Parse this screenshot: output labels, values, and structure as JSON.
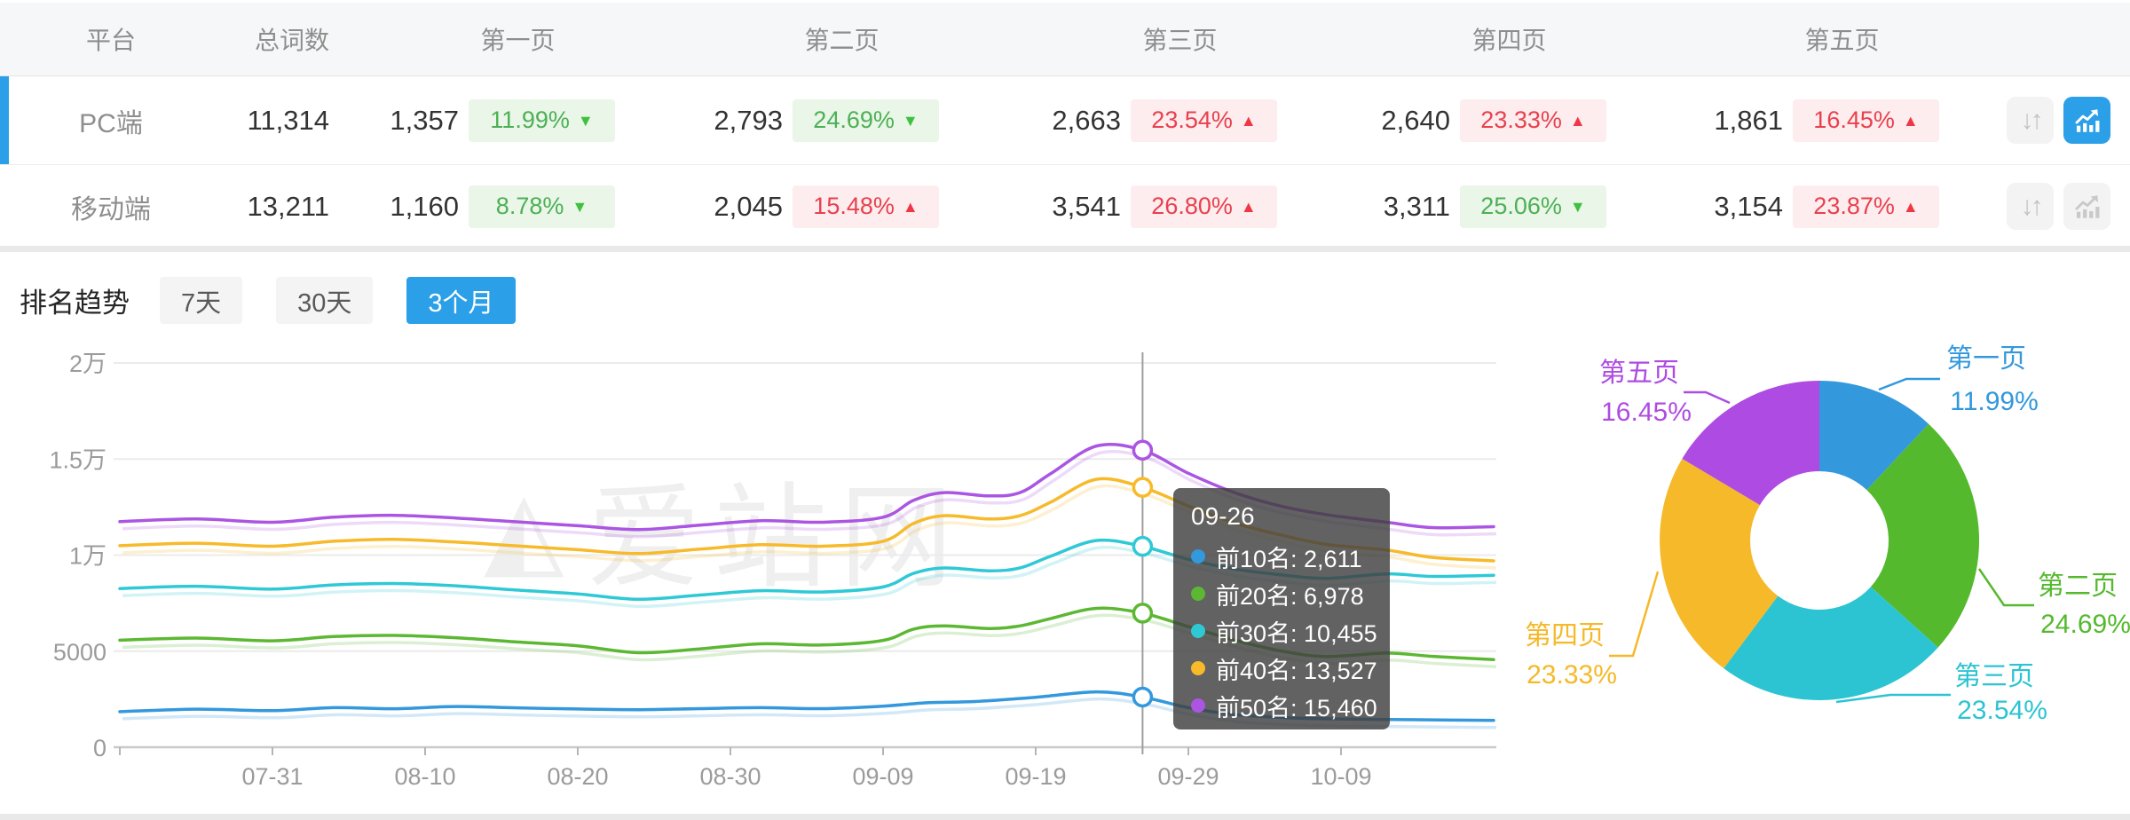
{
  "table": {
    "header": {
      "platform": "平台",
      "total": "总词数",
      "pages": [
        "第一页",
        "第二页",
        "第三页",
        "第四页",
        "第五页"
      ]
    },
    "rows": [
      {
        "platform": "PC端",
        "total": "11,314",
        "selected": true,
        "trend_button_active": true,
        "pages": [
          {
            "count": "1,357",
            "pct": "11.99%",
            "direction": "down",
            "tone": "green"
          },
          {
            "count": "2,793",
            "pct": "24.69%",
            "direction": "down",
            "tone": "green"
          },
          {
            "count": "2,663",
            "pct": "23.54%",
            "direction": "up",
            "tone": "red"
          },
          {
            "count": "2,640",
            "pct": "23.33%",
            "direction": "up",
            "tone": "red"
          },
          {
            "count": "1,861",
            "pct": "16.45%",
            "direction": "up",
            "tone": "red"
          }
        ]
      },
      {
        "platform": "移动端",
        "total": "13,211",
        "selected": false,
        "trend_button_active": false,
        "pages": [
          {
            "count": "1,160",
            "pct": "8.78%",
            "direction": "down",
            "tone": "green"
          },
          {
            "count": "2,045",
            "pct": "15.48%",
            "direction": "up",
            "tone": "red"
          },
          {
            "count": "3,541",
            "pct": "26.80%",
            "direction": "up",
            "tone": "red"
          },
          {
            "count": "3,311",
            "pct": "25.06%",
            "direction": "down",
            "tone": "green"
          },
          {
            "count": "3,154",
            "pct": "23.87%",
            "direction": "up",
            "tone": "red"
          }
        ]
      }
    ]
  },
  "trend": {
    "title": "排名趋势",
    "tabs": [
      {
        "label": "7天",
        "active": false
      },
      {
        "label": "30天",
        "active": false
      },
      {
        "label": "3个月",
        "active": true
      }
    ]
  },
  "watermark": {
    "text": "爱站网"
  },
  "tooltip": {
    "date": "09-26",
    "rows": [
      {
        "label": "前10名",
        "value": "2,611",
        "color": "#3398dc"
      },
      {
        "label": "前20名",
        "value": "6,978",
        "color": "#5cb832"
      },
      {
        "label": "前30名",
        "value": "10,455",
        "color": "#2fc9d6"
      },
      {
        "label": "前40名",
        "value": "13,527",
        "color": "#f7ba2a"
      },
      {
        "label": "前50名",
        "value": "15,460",
        "color": "#ab55e3"
      }
    ]
  },
  "colors": {
    "accent_blue": "#2b9fe8",
    "badge_green_text": "#4db056",
    "badge_red_text": "#e8414d",
    "axis_text": "#9b9b9b",
    "grid_line": "#ebebeb"
  },
  "chart_data": [
    {
      "type": "line",
      "title": "排名趋势 3个月",
      "x_axis": {
        "start_date": "07-21",
        "end_date": "10-19",
        "tick_labels": [
          "07-31",
          "08-10",
          "08-20",
          "08-30",
          "09-09",
          "09-19",
          "09-29",
          "10-09"
        ],
        "tick_days": [
          10,
          20,
          30,
          40,
          50,
          60,
          70,
          80
        ],
        "domain_days": [
          0,
          90
        ]
      },
      "y_axis": {
        "tick_labels": [
          "0",
          "5000",
          "1万",
          "1.5万",
          "2万"
        ],
        "tick_values": [
          0,
          5000,
          10000,
          15000,
          20000
        ],
        "ylim": [
          0,
          20000
        ]
      },
      "highlight": {
        "date": "09-26",
        "day": 67,
        "values": [
          2611,
          6978,
          10455,
          13527,
          15460
        ]
      },
      "legend_position": "tooltip-only",
      "grid": true,
      "series": [
        {
          "name": "前10名",
          "color": "#3398dc",
          "points": [
            [
              0,
              1850
            ],
            [
              5,
              1980
            ],
            [
              10,
              1905
            ],
            [
              14,
              2060
            ],
            [
              18,
              2005
            ],
            [
              22,
              2120
            ],
            [
              26,
              2050
            ],
            [
              30,
              1990
            ],
            [
              34,
              1955
            ],
            [
              38,
              2010
            ],
            [
              42,
              2060
            ],
            [
              46,
              2010
            ],
            [
              50,
              2140
            ],
            [
              53,
              2320
            ],
            [
              56,
              2380
            ],
            [
              60,
              2600
            ],
            [
              64,
              2880
            ],
            [
              67,
              2611
            ],
            [
              70,
              2060
            ],
            [
              73,
              1700
            ],
            [
              77,
              1520
            ],
            [
              81,
              1460
            ],
            [
              85,
              1430
            ],
            [
              90,
              1400
            ]
          ]
        },
        {
          "name": "前20名",
          "color": "#5cb832",
          "points": [
            [
              0,
              5570
            ],
            [
              5,
              5680
            ],
            [
              10,
              5540
            ],
            [
              14,
              5760
            ],
            [
              18,
              5820
            ],
            [
              22,
              5700
            ],
            [
              26,
              5480
            ],
            [
              30,
              5280
            ],
            [
              34,
              4920
            ],
            [
              38,
              5120
            ],
            [
              42,
              5380
            ],
            [
              46,
              5320
            ],
            [
              50,
              5560
            ],
            [
              52,
              6150
            ],
            [
              54,
              6320
            ],
            [
              57,
              6180
            ],
            [
              59,
              6320
            ],
            [
              61,
              6700
            ],
            [
              64,
              7230
            ],
            [
              67,
              6978
            ],
            [
              70,
              6280
            ],
            [
              73,
              5580
            ],
            [
              76,
              5020
            ],
            [
              79,
              4720
            ],
            [
              83,
              4900
            ],
            [
              86,
              4730
            ],
            [
              90,
              4560
            ]
          ]
        },
        {
          "name": "前30名",
          "color": "#2fc9d6",
          "points": [
            [
              0,
              8260
            ],
            [
              5,
              8380
            ],
            [
              10,
              8230
            ],
            [
              14,
              8450
            ],
            [
              18,
              8520
            ],
            [
              22,
              8400
            ],
            [
              26,
              8180
            ],
            [
              30,
              7980
            ],
            [
              34,
              7700
            ],
            [
              38,
              7920
            ],
            [
              42,
              8150
            ],
            [
              46,
              8080
            ],
            [
              50,
              8340
            ],
            [
              52,
              9050
            ],
            [
              54,
              9330
            ],
            [
              57,
              9180
            ],
            [
              59,
              9340
            ],
            [
              61,
              9950
            ],
            [
              64,
              10760
            ],
            [
              67,
              10455
            ],
            [
              70,
              9780
            ],
            [
              73,
              9280
            ],
            [
              76,
              8980
            ],
            [
              79,
              8790
            ],
            [
              83,
              9020
            ],
            [
              86,
              8890
            ],
            [
              90,
              8950
            ]
          ]
        },
        {
          "name": "前40名",
          "color": "#f7ba2a",
          "points": [
            [
              0,
              10490
            ],
            [
              5,
              10620
            ],
            [
              10,
              10460
            ],
            [
              14,
              10720
            ],
            [
              18,
              10820
            ],
            [
              22,
              10680
            ],
            [
              26,
              10480
            ],
            [
              30,
              10280
            ],
            [
              34,
              10080
            ],
            [
              38,
              10310
            ],
            [
              42,
              10540
            ],
            [
              46,
              10460
            ],
            [
              50,
              10720
            ],
            [
              52,
              11650
            ],
            [
              54,
              12050
            ],
            [
              57,
              11880
            ],
            [
              59,
              12060
            ],
            [
              61,
              12760
            ],
            [
              64,
              13950
            ],
            [
              67,
              13527
            ],
            [
              70,
              12560
            ],
            [
              73,
              11680
            ],
            [
              76,
              11060
            ],
            [
              79,
              10560
            ],
            [
              83,
              10260
            ],
            [
              86,
              9880
            ],
            [
              90,
              9700
            ]
          ]
        },
        {
          "name": "前50名",
          "color": "#ab55e3",
          "points": [
            [
              0,
              11740
            ],
            [
              5,
              11880
            ],
            [
              10,
              11710
            ],
            [
              14,
              11970
            ],
            [
              18,
              12070
            ],
            [
              22,
              11930
            ],
            [
              26,
              11730
            ],
            [
              30,
              11530
            ],
            [
              34,
              11330
            ],
            [
              38,
              11560
            ],
            [
              42,
              11790
            ],
            [
              46,
              11710
            ],
            [
              50,
              11970
            ],
            [
              52,
              12850
            ],
            [
              54,
              13250
            ],
            [
              57,
              13080
            ],
            [
              59,
              13260
            ],
            [
              61,
              14250
            ],
            [
              64,
              15680
            ],
            [
              67,
              15460
            ],
            [
              70,
              14260
            ],
            [
              73,
              13260
            ],
            [
              76,
              12560
            ],
            [
              79,
              12110
            ],
            [
              83,
              11710
            ],
            [
              86,
              11430
            ],
            [
              90,
              11480
            ]
          ]
        }
      ]
    },
    {
      "type": "donut",
      "labels": [
        "第一页",
        "第二页",
        "第三页",
        "第四页",
        "第五页"
      ],
      "values": [
        11.99,
        24.69,
        23.54,
        23.33,
        16.45
      ],
      "unit": "%",
      "colors": [
        "#3398dc",
        "#55b92e",
        "#2cc4d2",
        "#f5b929",
        "#ae4be2"
      ],
      "legend_position": "callout-labels"
    }
  ]
}
